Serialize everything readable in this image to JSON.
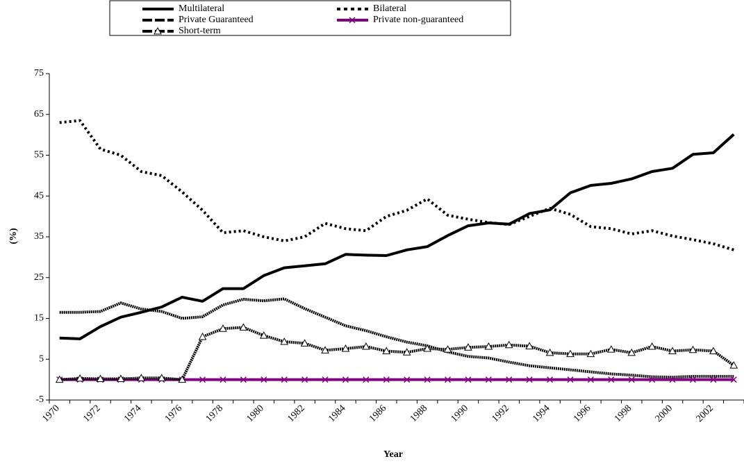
{
  "chart_data": {
    "type": "line",
    "x_label": "Year",
    "y_label": "(%)",
    "categories": [
      "1970",
      null,
      "1972",
      null,
      "1974",
      null,
      "1976",
      null,
      "1978",
      null,
      "1980",
      null,
      "1982",
      null,
      "1984",
      null,
      "1986",
      null,
      "1988",
      null,
      "1990",
      null,
      "1992",
      null,
      "1994",
      null,
      "1996",
      null,
      "1998",
      null,
      "2000",
      null,
      "2002",
      null
    ],
    "ylim": [
      -5,
      75
    ],
    "yticks": [
      -5,
      5,
      15,
      25,
      35,
      45,
      55,
      65,
      75
    ],
    "series": [
      {
        "name": "Multilateral",
        "color": "#000000",
        "dash": "none",
        "marker": "none",
        "values": [
          10.2,
          10,
          13,
          15.3,
          16.5,
          17.8,
          20.2,
          19.2,
          22.3,
          22.3,
          25.5,
          27.4,
          27.9,
          28.4,
          30.7,
          30.5,
          30.4,
          31.8,
          32.6,
          35.3,
          37.7,
          38.4,
          38.1,
          40.7,
          41.6,
          45.8,
          47.6,
          48.1,
          49.2,
          51,
          51.8,
          55.2,
          55.6,
          60.1
        ]
      },
      {
        "name": "Bilateral",
        "color": "#000000",
        "dash": "3 4",
        "marker": "none",
        "values": [
          63,
          63.5,
          56.5,
          55,
          51,
          50,
          46,
          41.5,
          36,
          36.5,
          35,
          34,
          35,
          38.3,
          37,
          36.5,
          40,
          41.5,
          44.3,
          40.3,
          39.3,
          38.5,
          38,
          40,
          42,
          40.5,
          37.5,
          37,
          35.7,
          36.5,
          35.2,
          34.3,
          33.3,
          31.8
        ]
      },
      {
        "name": "Private Guaranteed",
        "color": "#000000",
        "dash": "2 1",
        "marker": "none",
        "values": [
          16.5,
          16.5,
          16.7,
          18.8,
          17.3,
          16.7,
          15,
          15.4,
          18.3,
          19.7,
          19.3,
          19.8,
          17.4,
          15.3,
          13.2,
          12,
          10.5,
          9.2,
          8.3,
          6.8,
          5.7,
          5.3,
          4.3,
          3.4,
          2.9,
          2.4,
          1.9,
          1.4,
          1.1,
          0.7,
          0.6,
          0.8,
          0.8,
          0.8
        ]
      },
      {
        "name": "Private non-guaranteed",
        "color": "#800080",
        "dash": "none",
        "marker": "x",
        "values": [
          0,
          0,
          0,
          0,
          0,
          0,
          0,
          0,
          0,
          0,
          0,
          0,
          0,
          0,
          0,
          0,
          0,
          0,
          0,
          0,
          0,
          0,
          0,
          0,
          0,
          0,
          0,
          0,
          0,
          0,
          0,
          0,
          0,
          0
        ]
      },
      {
        "name": "Short-term",
        "color": "#000000",
        "dash": "2 1",
        "marker": "triangle",
        "values": [
          0,
          0.3,
          0.2,
          0.2,
          0.4,
          0.4,
          0,
          10.5,
          12.5,
          12.8,
          10.8,
          9.3,
          8.9,
          7.2,
          7.6,
          8.1,
          7,
          6.7,
          7.6,
          7.4,
          7.9,
          8.1,
          8.5,
          8.2,
          6.6,
          6.3,
          6.3,
          7.4,
          6.6,
          8.1,
          7,
          7.3,
          7,
          3.5
        ]
      }
    ]
  }
}
